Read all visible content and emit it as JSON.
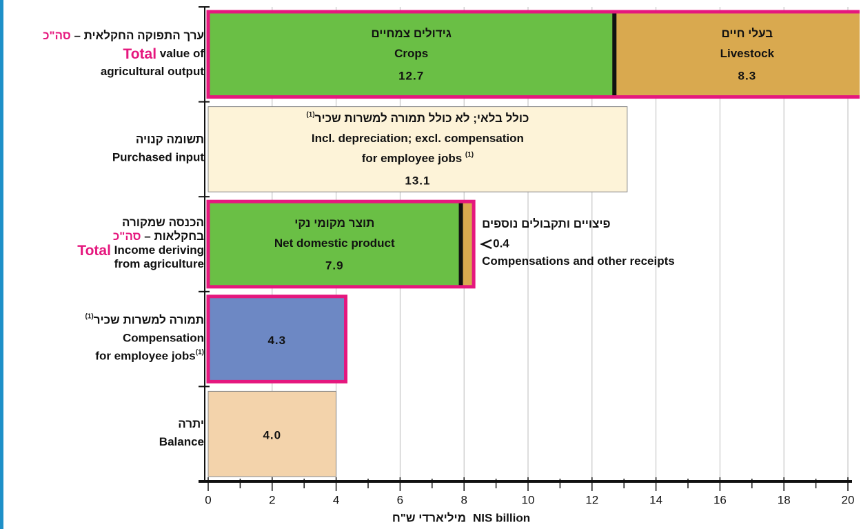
{
  "chart_data": {
    "type": "bar",
    "orientation": "horizontal",
    "emphasis_color": "#e5177e",
    "categories": [
      [
        [
          "ערך התפוקה החקלאית – ",
          {
            "text": "סה\"כ",
            "emphasis": true
          }
        ],
        [
          {
            "text": "Total",
            "emphasis": true
          },
          "  value of"
        ],
        [
          "agricultural output"
        ]
      ],
      [
        [
          "תשומה קנויה"
        ],
        [
          "Purchased input"
        ]
      ],
      [
        [
          "הכנסה שמקורה"
        ],
        [
          "בחקלאות – ",
          {
            "text": "סה\"כ",
            "emphasis": true
          }
        ],
        [
          {
            "text": "Total",
            "emphasis": true
          },
          "  Income deriving"
        ],
        [
          "from agriculture"
        ]
      ],
      [
        [
          "תמורה למשרות שכיר",
          {
            "text": "(1)",
            "sup": true
          }
        ],
        [
          "Compensation"
        ],
        [
          "for employee jobs",
          {
            "text": "(1)",
            "sup": true
          }
        ]
      ],
      [
        [
          "יתרה"
        ],
        [
          "Balance"
        ]
      ]
    ],
    "rows": [
      {
        "border": "#e5177e",
        "segments": [
          {
            "lines": [
              [
                "גידולים צמחיים"
              ],
              [
                "Crops"
              ]
            ],
            "value": 12.7,
            "color": "#6abf45",
            "text_color": "#ffffff"
          },
          {
            "lines": [
              [
                "בעלי חיים"
              ],
              [
                "Livestock"
              ]
            ],
            "value": 8.3,
            "color": "#d9a94f",
            "text_color": "#ffffff"
          }
        ]
      },
      {
        "border": "#888888",
        "segments": [
          {
            "lines": [
              [
                "כולל בלאי; לא כולל תמורה למשרות שכיר",
                {
                  "text": "(1)",
                  "sup": true
                }
              ],
              [
                "Incl. depreciation; excl. compensation"
              ],
              [
                "for employee jobs ",
                {
                  "text": "(1)",
                  "sup": true
                }
              ]
            ],
            "value": 13.1,
            "color": "#fdf3d8",
            "text_color": "#222222"
          }
        ]
      },
      {
        "border": "#e5177e",
        "segments": [
          {
            "lines": [
              [
                "תוצר מקומי נקי"
              ],
              [
                "Net domestic product"
              ]
            ],
            "value": 7.9,
            "color": "#6abf45",
            "text_color": "#ffffff"
          },
          {
            "lines": [
              [
                "פיצויים ותקבולים נוספים"
              ],
              [
                "Compensations and other receipts"
              ]
            ],
            "value": 0.4,
            "color": "#d9a94f",
            "text_color": "#222222",
            "label_outside": true
          }
        ]
      },
      {
        "border": "#e5177e",
        "segments": [
          {
            "value": 4.3,
            "color": "#6d88c4",
            "text_color": "#222222"
          }
        ]
      },
      {
        "border": "#888888",
        "segments": [
          {
            "value": 4.0,
            "value_label": "4.0",
            "color": "#f3d3ab",
            "text_color": "#ffffff"
          }
        ]
      }
    ],
    "xlim": [
      0,
      20
    ],
    "xticks": [
      0,
      2,
      4,
      6,
      8,
      10,
      12,
      14,
      16,
      18,
      20
    ],
    "xminor_ticks": [
      1,
      3,
      5,
      7,
      9,
      11,
      13,
      15,
      17,
      19
    ],
    "grid": true,
    "xlabel": "NIS billion",
    "xlabel_he": "מיליארדי ש\"ח"
  }
}
